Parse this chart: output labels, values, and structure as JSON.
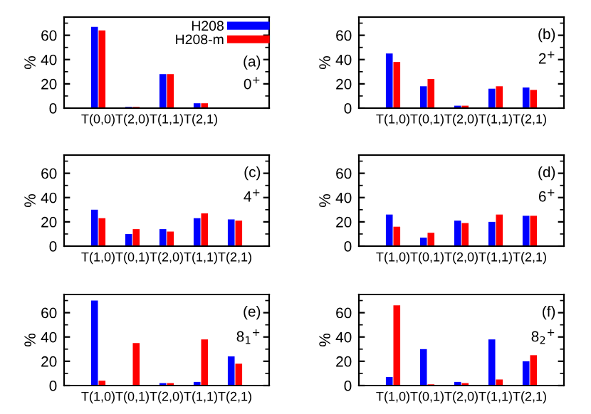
{
  "chart_data": [
    {
      "type": "bar",
      "categories": [
        "T(0,0)",
        "T(2,0)",
        "T(1,1)",
        "T(2,1)"
      ],
      "ylabel": "%",
      "ylim": [
        0,
        75
      ],
      "yticks": [
        0,
        20,
        40,
        60
      ],
      "legend": "top right",
      "annotations": [
        "(a)",
        "0$^{+}$"
      ],
      "series": [
        {
          "name": "H208",
          "color": "#0000ff",
          "values": [
            67,
            1,
            28,
            4
          ]
        },
        {
          "name": "H208-m",
          "color": "#ff0000",
          "values": [
            64,
            1,
            28,
            4
          ]
        }
      ]
    },
    {
      "type": "bar",
      "categories": [
        "T(1,0)",
        "T(0,1)",
        "T(2,0)",
        "T(1,1)",
        "T(2,1)"
      ],
      "ylabel": "%",
      "ylim": [
        0,
        75
      ],
      "yticks": [
        0,
        20,
        40,
        60
      ],
      "annotations": [
        "(b)",
        "2$^{+}$"
      ],
      "series": [
        {
          "color": "#0000ff",
          "values": [
            45,
            18,
            2,
            16,
            17
          ]
        },
        {
          "color": "#ff0000",
          "values": [
            38,
            24,
            2,
            18,
            15
          ]
        }
      ]
    },
    {
      "type": "bar",
      "categories": [
        "T(1,0)",
        "T(0,1)",
        "T(2,0)",
        "T(1,1)",
        "T(2,1)"
      ],
      "ylabel": "%",
      "ylim": [
        0,
        75
      ],
      "yticks": [
        0,
        20,
        40,
        60
      ],
      "annotations": [
        "(c)",
        "4$^{+}$"
      ],
      "series": [
        {
          "color": "#0000ff",
          "values": [
            30,
            10,
            14,
            23,
            22
          ]
        },
        {
          "color": "#ff0000",
          "values": [
            23,
            14,
            12,
            27,
            21
          ]
        }
      ]
    },
    {
      "type": "bar",
      "categories": [
        "T(1,0)",
        "T(0,1)",
        "T(2,0)",
        "T(1,1)",
        "T(2,1)"
      ],
      "ylabel": "%",
      "ylim": [
        0,
        75
      ],
      "yticks": [
        0,
        20,
        40,
        60
      ],
      "annotations": [
        "(d)",
        "6$^{+}$"
      ],
      "series": [
        {
          "color": "#0000ff",
          "values": [
            26,
            7,
            21,
            20,
            25
          ]
        },
        {
          "color": "#ff0000",
          "values": [
            16,
            11,
            19,
            26,
            25
          ]
        }
      ]
    },
    {
      "type": "bar",
      "categories": [
        "T(1,0)",
        "T(0,1)",
        "T(2,0)",
        "T(1,1)",
        "T(2,1)"
      ],
      "ylabel": "%",
      "ylim": [
        0,
        75
      ],
      "yticks": [
        0,
        20,
        40,
        60
      ],
      "annotations": [
        "(e)",
        "8$_{1}$$^{+}$"
      ],
      "series": [
        {
          "color": "#0000ff",
          "values": [
            70,
            0,
            2,
            3,
            24
          ]
        },
        {
          "color": "#ff0000",
          "values": [
            4,
            35,
            2,
            38,
            18
          ]
        }
      ]
    },
    {
      "type": "bar",
      "categories": [
        "T(1,0)",
        "T(0,1)",
        "T(2,0)",
        "T(1,1)",
        "T(2,1)"
      ],
      "ylabel": "%",
      "ylim": [
        0,
        75
      ],
      "yticks": [
        0,
        20,
        40,
        60
      ],
      "annotations": [
        "(f)",
        "8$_{2}$$^{+}$"
      ],
      "series": [
        {
          "color": "#0000ff",
          "values": [
            7,
            30,
            3,
            38,
            20
          ]
        },
        {
          "color": "#ff0000",
          "values": [
            66,
            1,
            2,
            5,
            25
          ]
        }
      ]
    }
  ]
}
